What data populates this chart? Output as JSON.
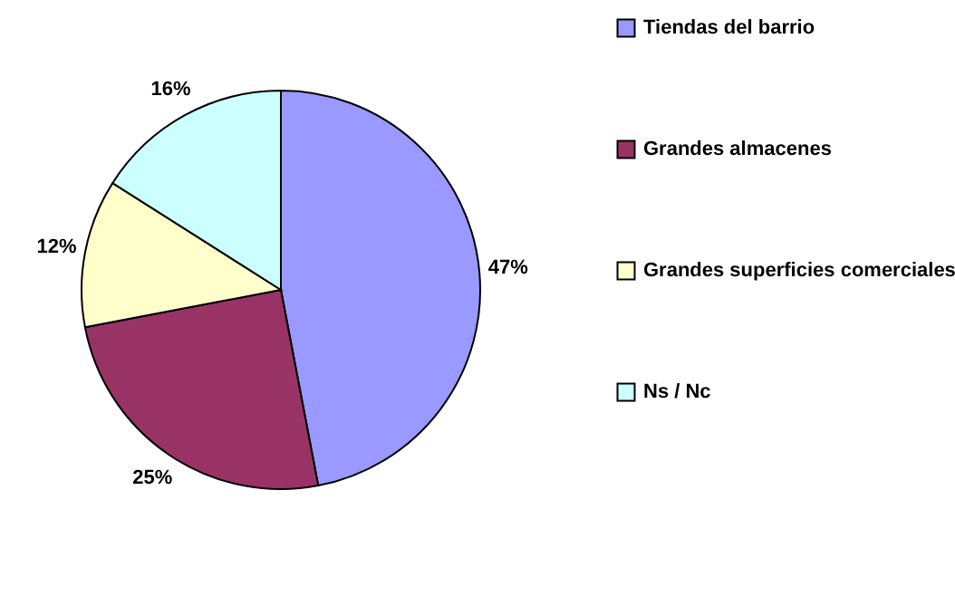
{
  "chart_data": {
    "type": "pie",
    "categories": [
      "Tiendas del barrio",
      "Grandes almacenes",
      "Grandes superficies comerciales",
      "Ns / Nc"
    ],
    "values": [
      47,
      25,
      12,
      16
    ],
    "colors": [
      "#9999ff",
      "#993366",
      "#ffffcc",
      "#ccffff"
    ],
    "value_labels": [
      "47%",
      "25%",
      "12%",
      "16%"
    ],
    "legend": "right"
  }
}
